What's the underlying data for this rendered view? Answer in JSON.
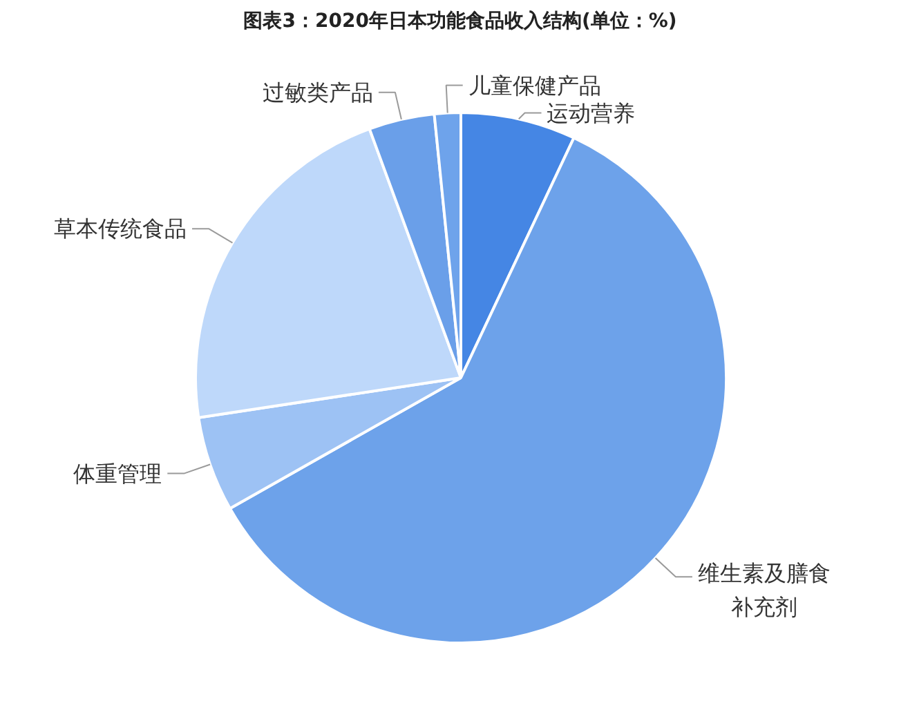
{
  "chart_data": {
    "type": "pie",
    "title": "图表3：2020年日本功能食品收入结构(单位：%)",
    "categories": [
      "运动营养",
      "维生素及膳食补充剂",
      "体重管理",
      "草本传统食品",
      "过敏类产品",
      "儿童保健产品"
    ],
    "values": [
      7.0,
      59.8,
      5.8,
      21.8,
      4.0,
      1.6
    ],
    "colors": [
      "#4586e4",
      "#6da2ea",
      "#9dc2f4",
      "#bed8fa",
      "#6a9fe9",
      "#6ea3eb"
    ]
  }
}
